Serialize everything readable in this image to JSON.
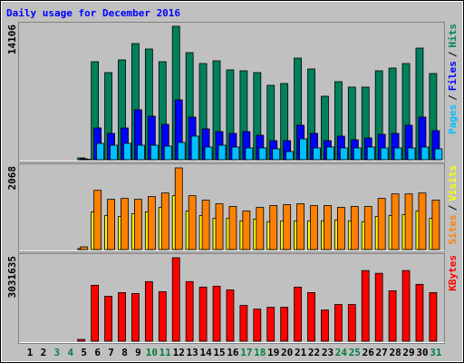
{
  "title": "Daily usage for December 2016",
  "categories": [
    "1",
    "2",
    "3",
    "4",
    "5",
    "6",
    "7",
    "8",
    "9",
    "10",
    "11",
    "12",
    "13",
    "14",
    "15",
    "16",
    "17",
    "18",
    "19",
    "20",
    "21",
    "22",
    "23",
    "24",
    "25",
    "26",
    "27",
    "28",
    "29",
    "30",
    "31"
  ],
  "category_colors": [
    "#000000",
    "#000000",
    "#008040",
    "#008040",
    "#000000",
    "#000000",
    "#000000",
    "#000000",
    "#000000",
    "#008040",
    "#008040",
    "#000000",
    "#000000",
    "#000000",
    "#000000",
    "#000000",
    "#008040",
    "#008040",
    "#000000",
    "#000000",
    "#000000",
    "#000000",
    "#000000",
    "#008040",
    "#008040",
    "#000000",
    "#000000",
    "#000000",
    "#000000",
    "#000000",
    "#008040"
  ],
  "legend_separator": "/",
  "chart_data": [
    {
      "type": "bar",
      "ylim": [
        0,
        14106
      ],
      "yticks": [
        14106
      ],
      "series": [
        {
          "name": "Pages",
          "color": "#00c0ff",
          "values": [
            0,
            0,
            0,
            0,
            50,
            1727,
            1535,
            1727,
            1535,
            1535,
            1439,
            1823,
            2495,
            1343,
            1535,
            1343,
            1247,
            1247,
            1151,
            864,
            2207,
            1247,
            1343,
            1247,
            1247,
            1343,
            1247,
            1247,
            1247,
            1343,
            1151
          ]
        },
        {
          "name": "Files",
          "color": "#0000ff",
          "values": [
            0,
            0,
            0,
            0,
            96,
            3359,
            2783,
            3359,
            5278,
            4606,
            3742,
            6333,
            4510,
            3263,
            2975,
            2783,
            2975,
            2591,
            2015,
            2015,
            3647,
            2783,
            2015,
            2495,
            2111,
            2303,
            2687,
            2783,
            3647,
            4510,
            3071
          ]
        },
        {
          "name": "Hits",
          "color": "#00805c",
          "values": [
            0,
            0,
            0,
            0,
            192,
            10363,
            9212,
            10555,
            12283,
            11707,
            10363,
            14106,
            11323,
            10171,
            10459,
            9500,
            9404,
            9212,
            7869,
            8060,
            10747,
            9596,
            6717,
            8252,
            7677,
            7677,
            9404,
            9692,
            10171,
            11803,
            9116
          ]
        }
      ]
    },
    {
      "type": "bar",
      "ylim": [
        0,
        2068
      ],
      "yticks": [
        2068
      ],
      "series": [
        {
          "name": "Sites",
          "color": "#ff8000",
          "values": [
            0,
            0,
            0,
            0,
            68,
            1500,
            1273,
            1295,
            1273,
            1341,
            1432,
            2068,
            1364,
            1250,
            1159,
            1091,
            977,
            1068,
            1114,
            1136,
            1159,
            1114,
            1114,
            1068,
            1091,
            1091,
            1295,
            1409,
            1409,
            1432,
            1250
          ]
        },
        {
          "name": "Visits",
          "color": "#ffff00",
          "values": [
            0,
            0,
            0,
            0,
            23,
            955,
            864,
            841,
            909,
            955,
            1068,
            1364,
            977,
            864,
            795,
            795,
            727,
            773,
            705,
            727,
            727,
            727,
            727,
            750,
            727,
            705,
            841,
            864,
            886,
            977,
            795
          ]
        }
      ]
    },
    {
      "type": "bar",
      "ylim": [
        0,
        3031635
      ],
      "yticks": [
        3031635
      ],
      "series": [
        {
          "name": "KBytes",
          "color": "#ff0000",
          "values": [
            0,
            0,
            0,
            0,
            66630,
            2032154,
            1632386,
            1765642,
            1732328,
            2165410,
            1798956,
            3031635,
            2165410,
            1965526,
            1998840,
            1865584,
            1299246,
            1165990,
            1232618,
            1232618,
            1965526,
            1765642,
            1132676,
            1332560,
            1332560,
            2565237,
            2465295,
            1832270,
            2565237,
            2065468,
            1765642
          ]
        }
      ]
    }
  ]
}
